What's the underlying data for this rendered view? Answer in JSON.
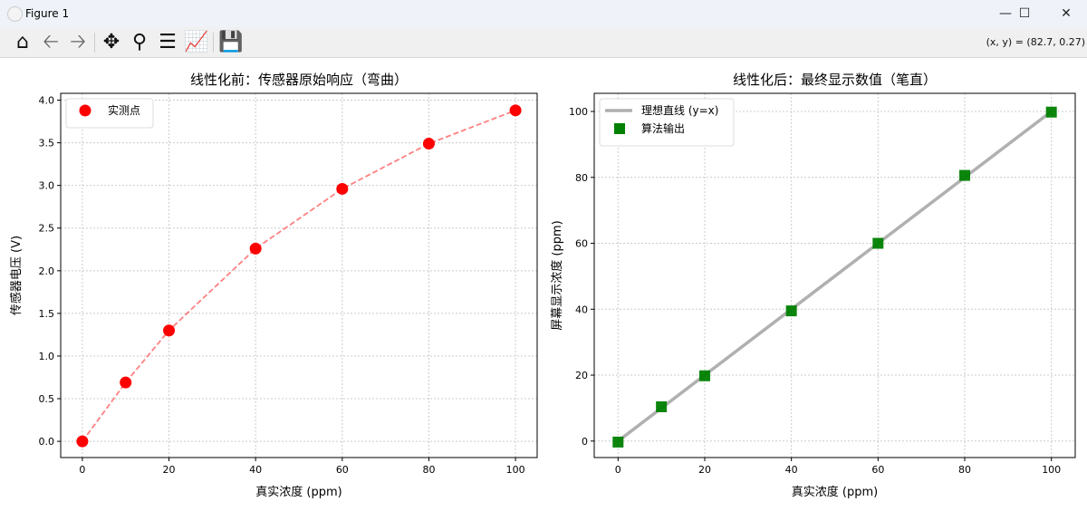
{
  "window": {
    "title": "Figure 1",
    "controls": [
      "minimize",
      "maximize",
      "close"
    ]
  },
  "toolbar": {
    "buttons": [
      {
        "name": "home",
        "icon": "home-icon"
      },
      {
        "name": "back",
        "icon": "arrow-left-icon"
      },
      {
        "name": "forward",
        "icon": "arrow-right-icon"
      },
      {
        "name": "pan",
        "icon": "move-icon"
      },
      {
        "name": "zoom",
        "icon": "zoom-icon"
      },
      {
        "name": "subplots",
        "icon": "sliders-icon"
      },
      {
        "name": "customize",
        "icon": "chart-line-icon"
      },
      {
        "name": "save",
        "icon": "save-icon"
      }
    ],
    "coords": "(x, y) = (82.7, 0.27)"
  },
  "chart_data": [
    {
      "type": "scatter",
      "title": "线性化前：传感器原始响应（弯曲）",
      "xlabel": "真实浓度 (ppm)",
      "ylabel": "传感器电压 (V)",
      "xlim": [
        -5,
        105
      ],
      "ylim": [
        -0.19,
        4.08
      ],
      "grid": true,
      "legend": "top-left",
      "xticks": [
        0,
        20,
        40,
        60,
        80,
        100
      ],
      "yticks": [
        0.0,
        0.5,
        1.0,
        1.5,
        2.0,
        2.5,
        3.0,
        3.5,
        4.0
      ],
      "ytick_labels": [
        "0.0",
        "0.5",
        "1.0",
        "1.5",
        "2.0",
        "2.5",
        "3.0",
        "3.5",
        "4.0"
      ],
      "series": [
        {
          "name": "实测点",
          "marker": "circle",
          "color": "#ff0000",
          "x": [
            0,
            10,
            20,
            40,
            60,
            80,
            100
          ],
          "y": [
            0.0,
            0.69,
            1.3,
            2.26,
            2.96,
            3.49,
            3.88
          ]
        },
        {
          "style": "dashed",
          "color": "#ff8080",
          "x": [
            0,
            10,
            20,
            40,
            60,
            80,
            100
          ],
          "y": [
            0.0,
            0.69,
            1.3,
            2.26,
            2.96,
            3.49,
            3.88
          ]
        }
      ]
    },
    {
      "type": "scatter",
      "title": "线性化后：最终显示数值（笔直）",
      "xlabel": "真实浓度 (ppm)",
      "ylabel": "屏幕显示浓度 (ppm)",
      "xlim": [
        -5.5,
        105.5
      ],
      "ylim": [
        -5,
        105.5
      ],
      "grid": true,
      "legend": "top-left",
      "xticks": [
        0,
        20,
        40,
        60,
        80,
        100
      ],
      "yticks": [
        0,
        20,
        40,
        60,
        80,
        100
      ],
      "ytick_labels": [
        "0",
        "20",
        "40",
        "60",
        "80",
        "100"
      ],
      "series": [
        {
          "name": "理想直线 (y=x)",
          "style": "line",
          "color": "#b0b0b0",
          "x": [
            0,
            100
          ],
          "y": [
            0,
            100
          ]
        },
        {
          "name": "算法输出",
          "marker": "square",
          "color": "#008000",
          "x": [
            0,
            10,
            20,
            40,
            60,
            80,
            100
          ],
          "y": [
            -0.3,
            10.4,
            19.8,
            39.5,
            60.0,
            80.6,
            99.8
          ]
        }
      ]
    }
  ]
}
